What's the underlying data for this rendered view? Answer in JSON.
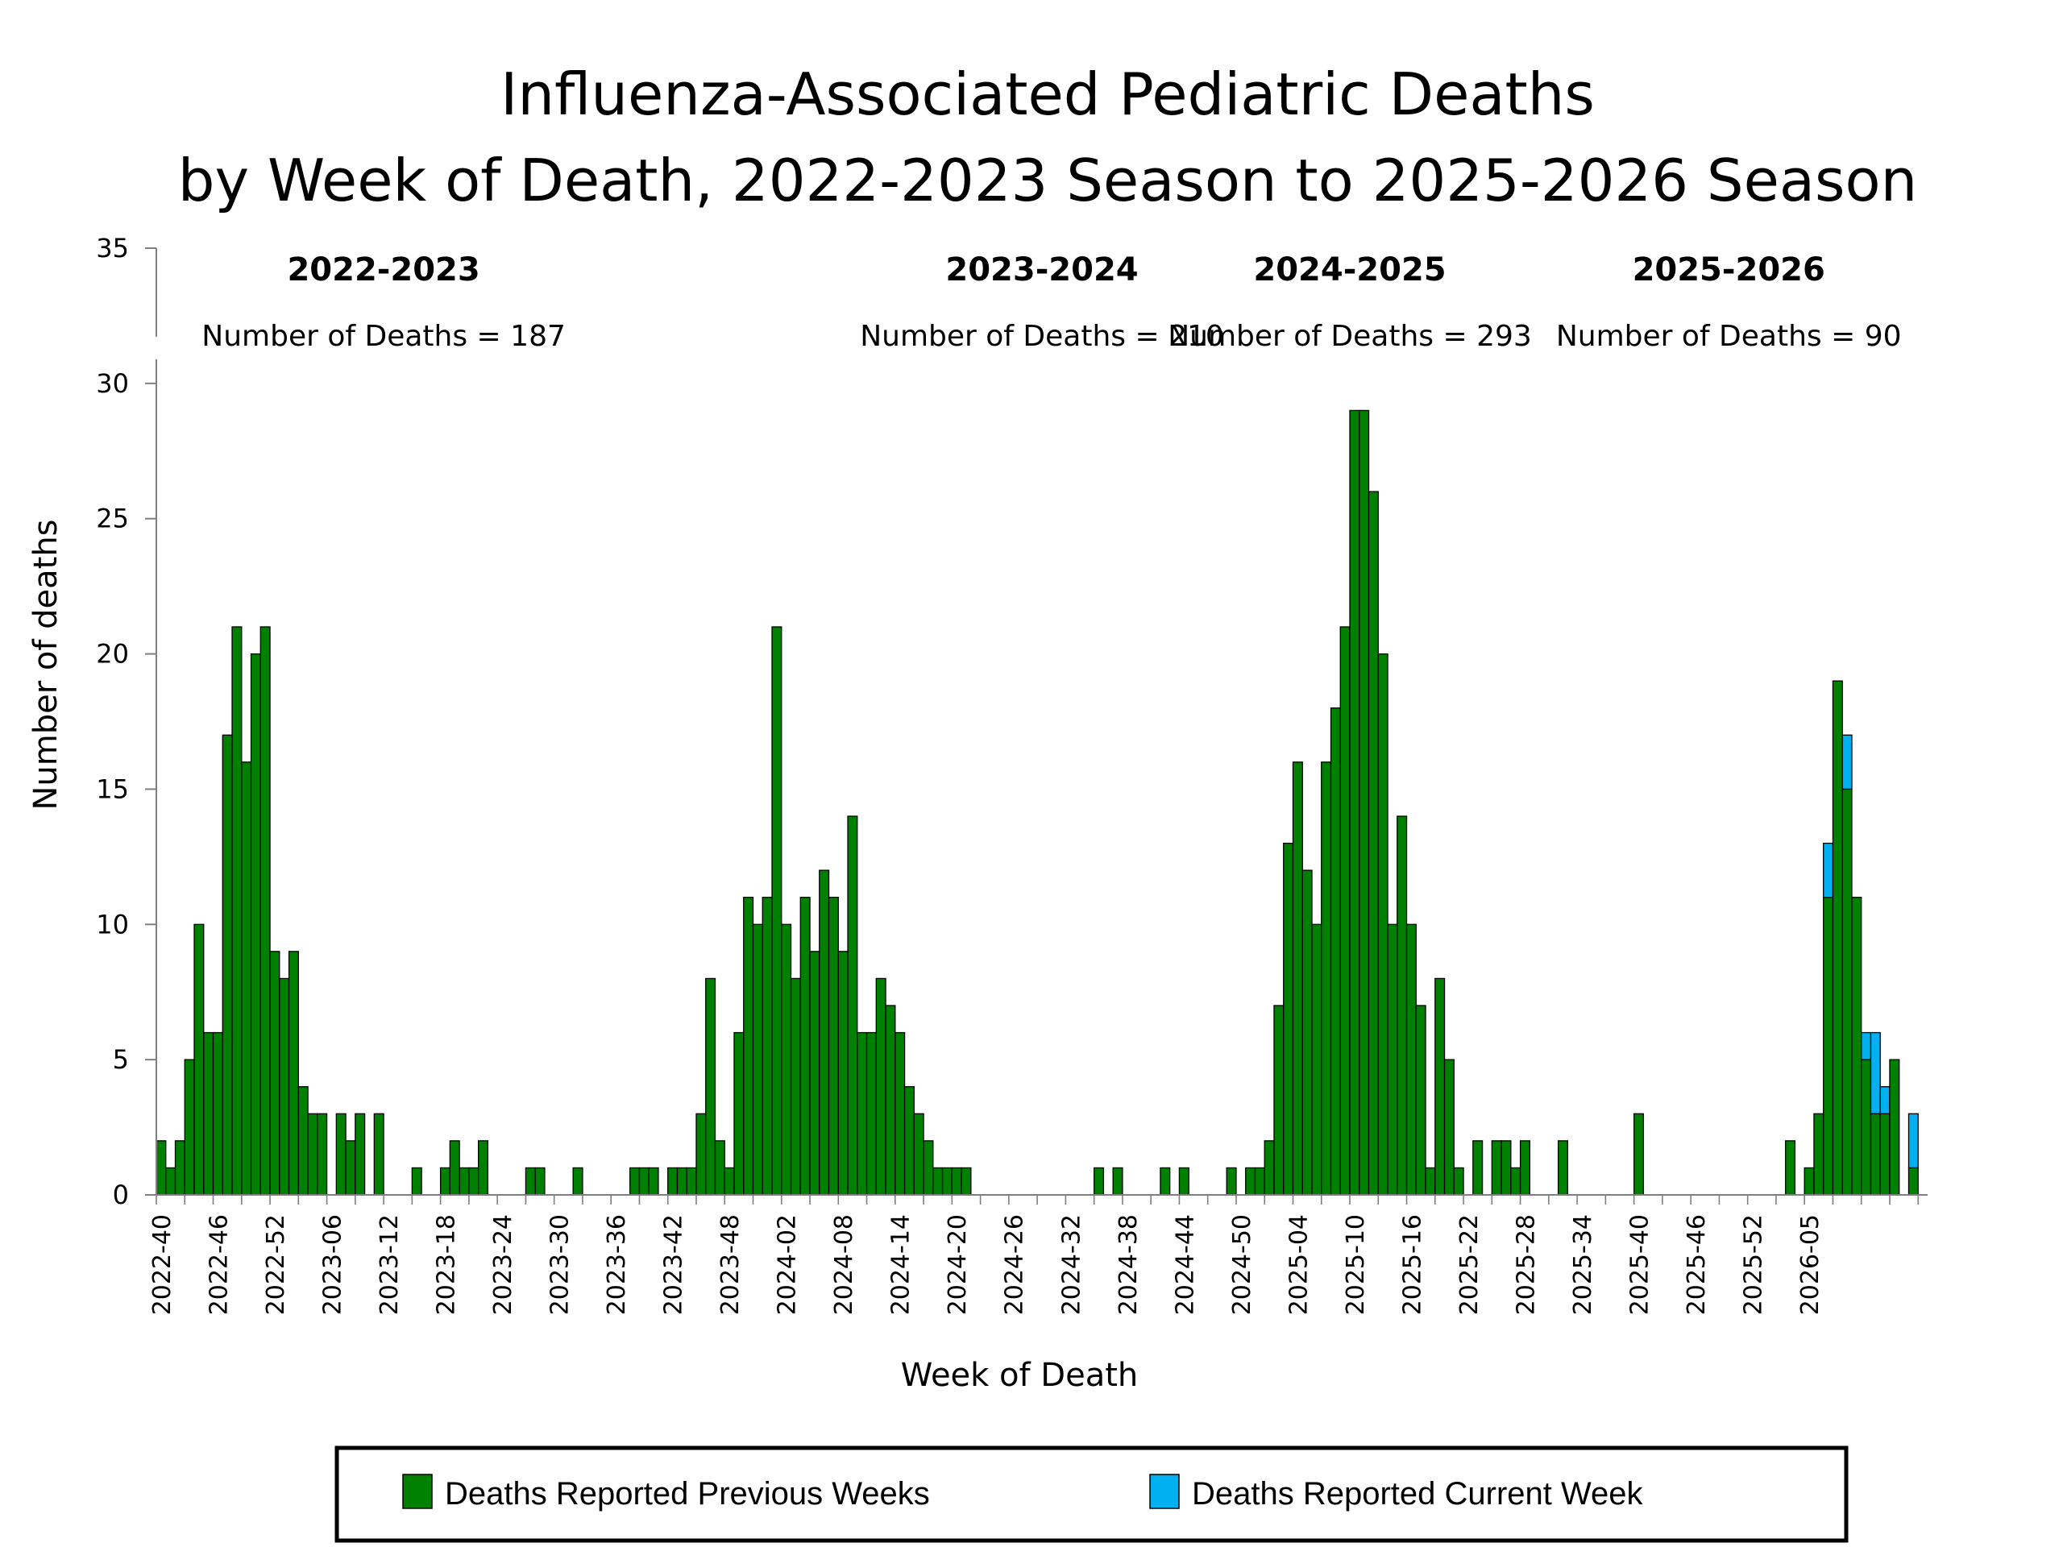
{
  "chart_data": {
    "type": "bar",
    "title": [
      "Influenza-Associated Pediatric Deaths",
      "by Week of Death, 2022-2023 Season to 2025-2026 Season"
    ],
    "xlabel": "Week of Death",
    "ylabel": "Number of deaths",
    "ylim": [
      0,
      35
    ],
    "y_ticks": [
      0,
      5,
      10,
      15,
      20,
      25,
      30,
      35
    ],
    "stacked": true,
    "grid": false,
    "legend_position": "bottom",
    "x_start": "2022-40",
    "x_tick_labels": [
      "2022-40",
      "2022-46",
      "2022-52",
      "2023-06",
      "2023-12",
      "2023-18",
      "2023-24",
      "2023-30",
      "2023-36",
      "2023-42",
      "2023-48",
      "2024-02",
      "2024-08",
      "2024-14",
      "2024-20",
      "2024-26",
      "2024-32",
      "2024-38",
      "2024-44",
      "2024-50",
      "2025-04",
      "2025-10",
      "2025-16",
      "2025-22",
      "2025-28",
      "2025-34",
      "2025-40",
      "2025-46",
      "2025-52",
      "2026-05"
    ],
    "tick_every_weeks": 6,
    "series": [
      {
        "name": "Deaths Reported Previous Weeks",
        "color": "#008000",
        "values": [
          2,
          1,
          2,
          5,
          10,
          6,
          6,
          17,
          21,
          16,
          20,
          21,
          9,
          8,
          9,
          4,
          3,
          3,
          0,
          3,
          2,
          3,
          0,
          3,
          0,
          0,
          0,
          1,
          0,
          0,
          1,
          2,
          1,
          1,
          2,
          0,
          0,
          0,
          0,
          1,
          1,
          0,
          0,
          0,
          1,
          0,
          0,
          0,
          0,
          0,
          1,
          1,
          1,
          0,
          1,
          1,
          1,
          3,
          8,
          2,
          1,
          6,
          11,
          10,
          11,
          21,
          10,
          8,
          11,
          9,
          12,
          11,
          9,
          14,
          6,
          6,
          8,
          7,
          6,
          4,
          3,
          2,
          1,
          1,
          1,
          1,
          0,
          0,
          0,
          0,
          0,
          0,
          0,
          0,
          0,
          0,
          0,
          0,
          0,
          1,
          0,
          1,
          0,
          0,
          0,
          0,
          1,
          0,
          1,
          0,
          0,
          0,
          0,
          1,
          0,
          1,
          1,
          2,
          7,
          13,
          16,
          12,
          10,
          16,
          18,
          21,
          29,
          29,
          26,
          20,
          10,
          14,
          10,
          7,
          1,
          8,
          5,
          1,
          0,
          2,
          0,
          2,
          2,
          1,
          2,
          0,
          0,
          0,
          2,
          0,
          0,
          0,
          0,
          0,
          0,
          0,
          3,
          0,
          0,
          0,
          0,
          0,
          0,
          0,
          0,
          0,
          0,
          0,
          0,
          0,
          0,
          0,
          2,
          0,
          1,
          3,
          11,
          19,
          15,
          11,
          5,
          3,
          3,
          5,
          0,
          1,
          0
        ]
      },
      {
        "name": "Deaths Reported Current Week",
        "color": "#00B0F0",
        "values": [
          0,
          0,
          0,
          0,
          0,
          0,
          0,
          0,
          0,
          0,
          0,
          0,
          0,
          0,
          0,
          0,
          0,
          0,
          0,
          0,
          0,
          0,
          0,
          0,
          0,
          0,
          0,
          0,
          0,
          0,
          0,
          0,
          0,
          0,
          0,
          0,
          0,
          0,
          0,
          0,
          0,
          0,
          0,
          0,
          0,
          0,
          0,
          0,
          0,
          0,
          0,
          0,
          0,
          0,
          0,
          0,
          0,
          0,
          0,
          0,
          0,
          0,
          0,
          0,
          0,
          0,
          0,
          0,
          0,
          0,
          0,
          0,
          0,
          0,
          0,
          0,
          0,
          0,
          0,
          0,
          0,
          0,
          0,
          0,
          0,
          0,
          0,
          0,
          0,
          0,
          0,
          0,
          0,
          0,
          0,
          0,
          0,
          0,
          0,
          0,
          0,
          0,
          0,
          0,
          0,
          0,
          0,
          0,
          0,
          0,
          0,
          0,
          0,
          0,
          0,
          0,
          0,
          0,
          0,
          0,
          0,
          0,
          0,
          0,
          0,
          0,
          0,
          0,
          0,
          0,
          0,
          0,
          0,
          0,
          0,
          0,
          0,
          0,
          0,
          0,
          0,
          0,
          0,
          0,
          0,
          0,
          0,
          0,
          0,
          0,
          0,
          0,
          0,
          0,
          0,
          0,
          0,
          0,
          0,
          0,
          0,
          0,
          0,
          0,
          0,
          0,
          0,
          0,
          0,
          0,
          0,
          0,
          0,
          0,
          0,
          0,
          2,
          0,
          2,
          0,
          1,
          3,
          1,
          0,
          0,
          2
        ]
      }
    ],
    "seasons": [
      {
        "label": "2022-2023",
        "deaths_text": "Number of Deaths = 187",
        "center_week": "2023-12"
      },
      {
        "label": "2023-2024",
        "deaths_text": "Number of Deaths = 210",
        "center_week": "2024-12"
      },
      {
        "label": "2024-2025",
        "deaths_text": "Number of Deaths = 293",
        "center_week": "2025-10"
      },
      {
        "label": "2025-2026",
        "deaths_text": "Number of Deaths = 90",
        "center_week": "2026-01"
      }
    ]
  }
}
